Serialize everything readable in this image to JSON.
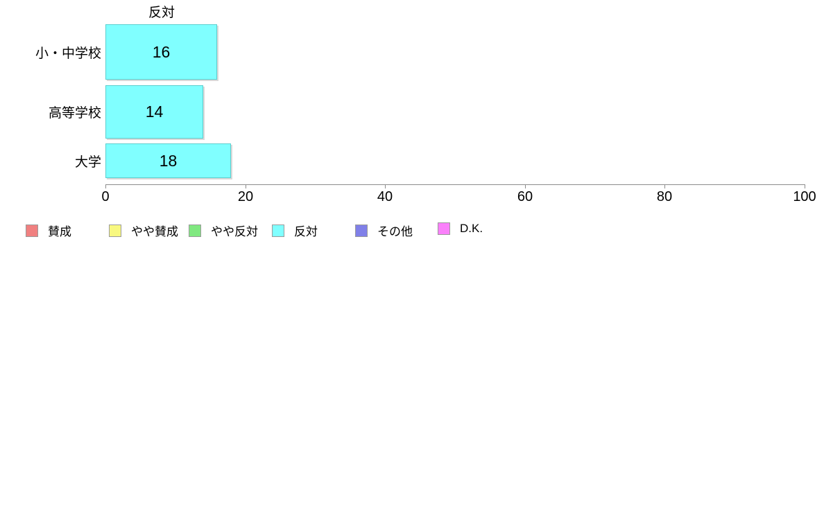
{
  "chart_data": {
    "type": "bar",
    "orientation": "horizontal",
    "title": "反対",
    "categories": [
      "小・中学校",
      "高等学校",
      "大学"
    ],
    "values": [
      16,
      14,
      18
    ],
    "xlabel": "",
    "ylabel": "",
    "xlim": [
      0,
      100
    ],
    "x_ticks": [
      0,
      20,
      40,
      60,
      80,
      100
    ],
    "grid": "off",
    "bar_color": "#80FFFF",
    "bar_border_color": "#5BCFCF",
    "axis_color": "#8C8C8C",
    "legend_position": "bottom-left",
    "legend": [
      {
        "label": "賛成",
        "color": "#F08080"
      },
      {
        "label": "やや賛成",
        "color": "#F8F880"
      },
      {
        "label": "やや反対",
        "color": "#80E880"
      },
      {
        "label": "反対",
        "color": "#80FFFF"
      },
      {
        "label": "その他",
        "color": "#8080E8"
      },
      {
        "label": "D.K.",
        "color": "#FA80FA"
      }
    ]
  }
}
